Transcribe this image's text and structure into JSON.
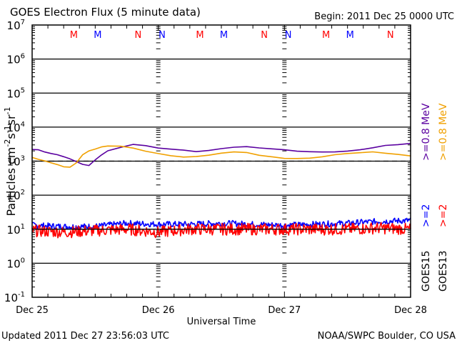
{
  "chart_data": {
    "type": "line",
    "title": "GOES Electron Flux (5 minute data)",
    "begin_label": "Begin: 2011 Dec 25 0000 UTC",
    "xlabel": "Universal Time",
    "ylabel": "Particles cm-2s-1sr-1",
    "ylabel_parts": {
      "base": "Particles cm",
      "exp1": "-2",
      "mid1": "s",
      "exp2": "-1",
      "mid2": "sr",
      "exp3": "-1"
    },
    "yscale": "log",
    "ylim": [
      0.1,
      10000000
    ],
    "y_ticks": [
      {
        "base": "10",
        "exp": "7",
        "value": 10000000
      },
      {
        "base": "10",
        "exp": "6",
        "value": 1000000
      },
      {
        "base": "10",
        "exp": "5",
        "value": 100000
      },
      {
        "base": "10",
        "exp": "4",
        "value": 10000
      },
      {
        "base": "10",
        "exp": "3",
        "value": 1000
      },
      {
        "base": "10",
        "exp": "2",
        "value": 100
      },
      {
        "base": "10",
        "exp": "1",
        "value": 10
      },
      {
        "base": "10",
        "exp": "0",
        "value": 1
      },
      {
        "base": "10",
        "exp": "-1",
        "value": 0.1
      }
    ],
    "xlim_days": [
      0,
      3
    ],
    "x_ticks": [
      "Dec 25",
      "Dec 26",
      "Dec 27",
      "Dec 28"
    ],
    "threshold_line": {
      "value": 1000,
      "style": "dashed"
    },
    "reference_line": {
      "value": 10,
      "style": "solid"
    },
    "markers": [
      {
        "label": "M",
        "day": 0.33,
        "color": "#ff0000"
      },
      {
        "label": "M",
        "day": 0.52,
        "color": "#0000ff"
      },
      {
        "label": "N",
        "day": 0.84,
        "color": "#ff0000"
      },
      {
        "label": "N",
        "day": 1.03,
        "color": "#0000ff"
      },
      {
        "label": "M",
        "day": 1.33,
        "color": "#ff0000"
      },
      {
        "label": "M",
        "day": 1.52,
        "color": "#0000ff"
      },
      {
        "label": "N",
        "day": 1.84,
        "color": "#ff0000"
      },
      {
        "label": "N",
        "day": 2.03,
        "color": "#0000ff"
      },
      {
        "label": "M",
        "day": 2.33,
        "color": "#ff0000"
      },
      {
        "label": "M",
        "day": 2.52,
        "color": "#0000ff"
      },
      {
        "label": "N",
        "day": 2.84,
        "color": "#ff0000"
      },
      {
        "label": "N",
        "day": 3.03,
        "color": "#0000ff"
      }
    ],
    "series": [
      {
        "name": "GOES15 >=0.8 MeV",
        "color": "#5a00a0",
        "x_days": [
          0,
          0.05,
          0.1,
          0.15,
          0.2,
          0.25,
          0.3,
          0.35,
          0.4,
          0.45,
          0.5,
          0.55,
          0.6,
          0.7,
          0.8,
          0.9,
          1.0,
          1.1,
          1.2,
          1.3,
          1.4,
          1.5,
          1.6,
          1.7,
          1.8,
          1.9,
          2.0,
          2.1,
          2.2,
          2.3,
          2.4,
          2.5,
          2.6,
          2.7,
          2.8,
          2.9,
          3.0
        ],
        "values": [
          2200,
          2150,
          1900,
          1700,
          1550,
          1350,
          1200,
          950,
          800,
          750,
          1100,
          1500,
          2000,
          2600,
          3100,
          2900,
          2400,
          2300,
          2100,
          1900,
          2100,
          2400,
          2500,
          2600,
          2500,
          2300,
          2100,
          2000,
          1900,
          1850,
          1850,
          2000,
          2200,
          2400,
          2900,
          3100,
          3300
        ]
      },
      {
        "name": "GOES13 >=0.8 MeV",
        "color": "#f0a000",
        "x_days": [
          0,
          0.05,
          0.1,
          0.15,
          0.2,
          0.25,
          0.3,
          0.35,
          0.4,
          0.45,
          0.5,
          0.55,
          0.6,
          0.7,
          0.8,
          0.9,
          1.0,
          1.1,
          1.2,
          1.3,
          1.4,
          1.5,
          1.6,
          1.7,
          1.8,
          1.9,
          2.0,
          2.1,
          2.2,
          2.3,
          2.4,
          2.5,
          2.6,
          2.7,
          2.8,
          2.9,
          3.0
        ],
        "values": [
          1300,
          1150,
          1000,
          900,
          800,
          700,
          650,
          900,
          1500,
          2000,
          2300,
          2600,
          2800,
          2700,
          2400,
          2000,
          1700,
          1450,
          1350,
          1400,
          1500,
          1700,
          1850,
          1750,
          1500,
          1350,
          1200,
          1200,
          1200,
          1350,
          1550,
          1700,
          1800,
          1850,
          1750,
          1600,
          1400
        ]
      },
      {
        "name": "GOES15 >=2 MeV",
        "color": "#0000ff",
        "x_days": [
          0,
          0.25,
          0.5,
          0.75,
          1.0,
          1.25,
          1.5,
          1.75,
          2.0,
          2.25,
          2.5,
          2.75,
          3.0
        ],
        "values": [
          13,
          12,
          12,
          15,
          14,
          14,
          15,
          14,
          13,
          14,
          15,
          17,
          18
        ]
      },
      {
        "name": "GOES13 >=2 MeV",
        "color": "#ff0000",
        "x_days": [
          0,
          0.25,
          0.5,
          0.75,
          1.0,
          1.25,
          1.5,
          1.75,
          2.0,
          2.25,
          2.5,
          2.75,
          3.0
        ],
        "values": [
          10,
          9,
          10,
          11,
          9,
          11,
          11,
          11,
          11,
          11,
          11,
          12,
          11
        ]
      }
    ],
    "legend": [
      {
        "text": ">=0.8 MeV",
        "satellite": "GOES15",
        "color": "#5a00a0"
      },
      {
        "text": ">=0.8 MeV",
        "satellite": "GOES13",
        "color": "#f0a000"
      },
      {
        "text": ">=2",
        "satellite": "GOES15",
        "color": "#0000ff"
      },
      {
        "text": ">=2",
        "satellite": "GOES13",
        "color": "#ff0000"
      },
      {
        "text": "GOES15",
        "color": "#000000"
      },
      {
        "text": "GOES13",
        "color": "#000000"
      }
    ],
    "legend_placement": "right-vertical"
  },
  "footer": {
    "updated": "Updated 2011 Dec 27 23:56:03 UTC",
    "credit": "NOAA/SWPC Boulder, CO USA"
  }
}
